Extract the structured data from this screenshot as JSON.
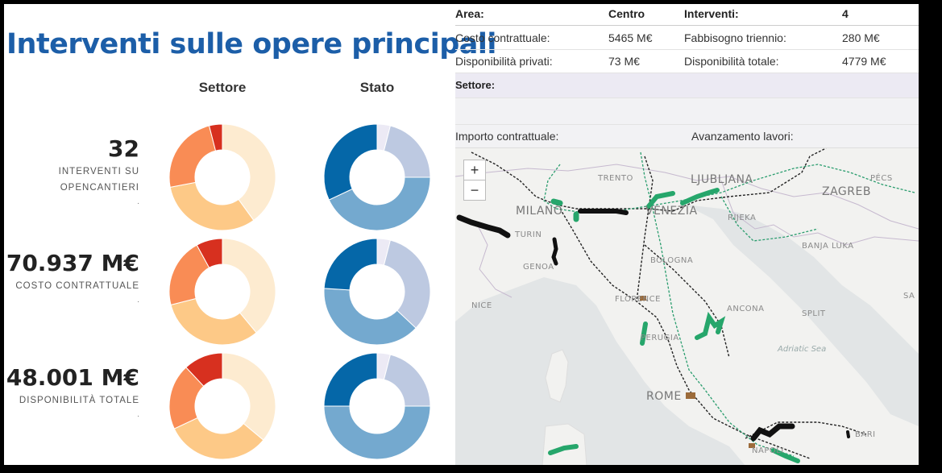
{
  "title": "Interventi sulle opere principali",
  "columns": {
    "settore": "Settore",
    "stato": "Stato"
  },
  "metrics": [
    {
      "value": "32",
      "label_line1": "INTERVENTI SU",
      "label_line2": "OPENCANTIERI",
      "dot": "."
    },
    {
      "value": "70.937 M€",
      "label_line1": "COSTO CONTRATTUALE",
      "label_line2": "",
      "dot": "."
    },
    {
      "value": "48.001 M€",
      "label_line1": "DISPONIBILITÀ TOTALE",
      "label_line2": "",
      "dot": "."
    }
  ],
  "donuts": {
    "settore": [
      [
        {
          "fraction": 0.4,
          "color": "#fdebd0"
        },
        {
          "fraction": 0.32,
          "color": "#fdc987"
        },
        {
          "fraction": 0.24,
          "color": "#f98c55"
        },
        {
          "fraction": 0.04,
          "color": "#d7301f"
        }
      ],
      [
        {
          "fraction": 0.39,
          "color": "#fdebd0"
        },
        {
          "fraction": 0.32,
          "color": "#fdc987"
        },
        {
          "fraction": 0.21,
          "color": "#f98c55"
        },
        {
          "fraction": 0.08,
          "color": "#d7301f"
        }
      ],
      [
        {
          "fraction": 0.36,
          "color": "#fdebd0"
        },
        {
          "fraction": 0.32,
          "color": "#fdc987"
        },
        {
          "fraction": 0.2,
          "color": "#f98c55"
        },
        {
          "fraction": 0.12,
          "color": "#d7301f"
        }
      ]
    ],
    "stato": [
      [
        {
          "fraction": 0.04,
          "color": "#eceaf5"
        },
        {
          "fraction": 0.21,
          "color": "#bdc9e1"
        },
        {
          "fraction": 0.43,
          "color": "#74a9cf"
        },
        {
          "fraction": 0.32,
          "color": "#0567a8"
        }
      ],
      [
        {
          "fraction": 0.04,
          "color": "#eceaf5"
        },
        {
          "fraction": 0.33,
          "color": "#bdc9e1"
        },
        {
          "fraction": 0.39,
          "color": "#74a9cf"
        },
        {
          "fraction": 0.24,
          "color": "#0567a8"
        }
      ],
      [
        {
          "fraction": 0.04,
          "color": "#eceaf5"
        },
        {
          "fraction": 0.21,
          "color": "#bdc9e1"
        },
        {
          "fraction": 0.5,
          "color": "#74a9cf"
        },
        {
          "fraction": 0.25,
          "color": "#0567a8"
        }
      ]
    ]
  },
  "info_table": {
    "area_label": "Area:",
    "area_value": "Centro",
    "interventi_label": "Interventi:",
    "interventi_value": "4",
    "costo_label": "Costo contrattuale:",
    "costo_value": "5465 M€",
    "fabbisogno_label": "Fabbisogno triennio:",
    "fabbisogno_value": "280 M€",
    "privati_label": "Disponibilità privati:",
    "privati_value": "73 M€",
    "totale_label": "Disponibilità totale:",
    "totale_value": "4779 M€",
    "settore_label": "Settore:",
    "importo_label": "Importo contrattuale:",
    "avanzamento_label": "Avanzamento lavori:"
  },
  "map": {
    "zoom_in": "+",
    "zoom_out": "−",
    "cities": {
      "trento": "TRENTO",
      "ljubljana": "LJUBLJANA",
      "pecs": "PÉCS",
      "zagreb": "ZAGREB",
      "milano": "MILANO",
      "venezia": "VENEZIA",
      "rijeka": "RIJEKA",
      "torino": "TURIN",
      "banja_luka": "BANJA LUKA",
      "genova": "GENOA",
      "bologna": "BOLOGNA",
      "sa": "SA",
      "nice": "NICE",
      "firenze": "FLORENCE",
      "ancona": "ANCONA",
      "split": "SPLIT",
      "perugia": "PERUGIA",
      "roma": "ROME",
      "bari": "BARI",
      "napoli": "NAPOLI"
    },
    "sea": "Adriatic Sea",
    "colors": {
      "land": "#f2f2f0",
      "sea": "#e2e5e6",
      "project_green": "#26a66b",
      "project_black": "#111111",
      "project_brown": "#9c6b3a"
    }
  }
}
